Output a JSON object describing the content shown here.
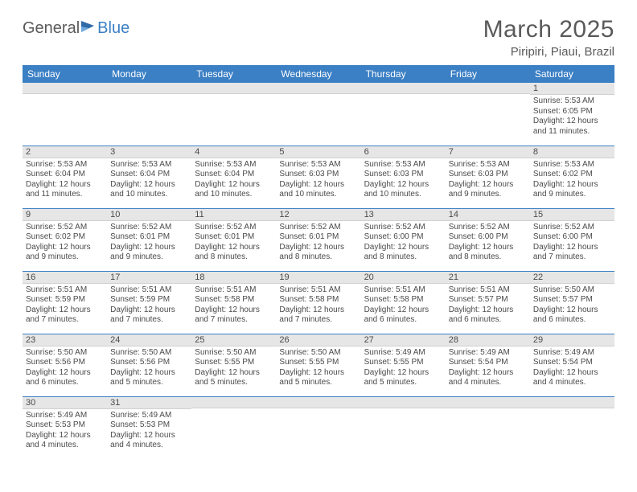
{
  "brand": {
    "part1": "General",
    "part2": "Blue"
  },
  "title": "March 2025",
  "location": "Piripiri, Piaui, Brazil",
  "colors": {
    "header_bg": "#3b7fc4",
    "header_text": "#ffffff",
    "daynum_bg": "#e6e6e6",
    "row_border": "#3b7fc4",
    "text": "#4a4a4a",
    "title_text": "#5a5a5a"
  },
  "day_labels": [
    "Sunday",
    "Monday",
    "Tuesday",
    "Wednesday",
    "Thursday",
    "Friday",
    "Saturday"
  ],
  "weeks": [
    [
      {
        "n": "",
        "sr": "",
        "ss": "",
        "dl": ""
      },
      {
        "n": "",
        "sr": "",
        "ss": "",
        "dl": ""
      },
      {
        "n": "",
        "sr": "",
        "ss": "",
        "dl": ""
      },
      {
        "n": "",
        "sr": "",
        "ss": "",
        "dl": ""
      },
      {
        "n": "",
        "sr": "",
        "ss": "",
        "dl": ""
      },
      {
        "n": "",
        "sr": "",
        "ss": "",
        "dl": ""
      },
      {
        "n": "1",
        "sr": "Sunrise: 5:53 AM",
        "ss": "Sunset: 6:05 PM",
        "dl": "Daylight: 12 hours and 11 minutes."
      }
    ],
    [
      {
        "n": "2",
        "sr": "Sunrise: 5:53 AM",
        "ss": "Sunset: 6:04 PM",
        "dl": "Daylight: 12 hours and 11 minutes."
      },
      {
        "n": "3",
        "sr": "Sunrise: 5:53 AM",
        "ss": "Sunset: 6:04 PM",
        "dl": "Daylight: 12 hours and 10 minutes."
      },
      {
        "n": "4",
        "sr": "Sunrise: 5:53 AM",
        "ss": "Sunset: 6:04 PM",
        "dl": "Daylight: 12 hours and 10 minutes."
      },
      {
        "n": "5",
        "sr": "Sunrise: 5:53 AM",
        "ss": "Sunset: 6:03 PM",
        "dl": "Daylight: 12 hours and 10 minutes."
      },
      {
        "n": "6",
        "sr": "Sunrise: 5:53 AM",
        "ss": "Sunset: 6:03 PM",
        "dl": "Daylight: 12 hours and 10 minutes."
      },
      {
        "n": "7",
        "sr": "Sunrise: 5:53 AM",
        "ss": "Sunset: 6:03 PM",
        "dl": "Daylight: 12 hours and 9 minutes."
      },
      {
        "n": "8",
        "sr": "Sunrise: 5:53 AM",
        "ss": "Sunset: 6:02 PM",
        "dl": "Daylight: 12 hours and 9 minutes."
      }
    ],
    [
      {
        "n": "9",
        "sr": "Sunrise: 5:52 AM",
        "ss": "Sunset: 6:02 PM",
        "dl": "Daylight: 12 hours and 9 minutes."
      },
      {
        "n": "10",
        "sr": "Sunrise: 5:52 AM",
        "ss": "Sunset: 6:01 PM",
        "dl": "Daylight: 12 hours and 9 minutes."
      },
      {
        "n": "11",
        "sr": "Sunrise: 5:52 AM",
        "ss": "Sunset: 6:01 PM",
        "dl": "Daylight: 12 hours and 8 minutes."
      },
      {
        "n": "12",
        "sr": "Sunrise: 5:52 AM",
        "ss": "Sunset: 6:01 PM",
        "dl": "Daylight: 12 hours and 8 minutes."
      },
      {
        "n": "13",
        "sr": "Sunrise: 5:52 AM",
        "ss": "Sunset: 6:00 PM",
        "dl": "Daylight: 12 hours and 8 minutes."
      },
      {
        "n": "14",
        "sr": "Sunrise: 5:52 AM",
        "ss": "Sunset: 6:00 PM",
        "dl": "Daylight: 12 hours and 8 minutes."
      },
      {
        "n": "15",
        "sr": "Sunrise: 5:52 AM",
        "ss": "Sunset: 6:00 PM",
        "dl": "Daylight: 12 hours and 7 minutes."
      }
    ],
    [
      {
        "n": "16",
        "sr": "Sunrise: 5:51 AM",
        "ss": "Sunset: 5:59 PM",
        "dl": "Daylight: 12 hours and 7 minutes."
      },
      {
        "n": "17",
        "sr": "Sunrise: 5:51 AM",
        "ss": "Sunset: 5:59 PM",
        "dl": "Daylight: 12 hours and 7 minutes."
      },
      {
        "n": "18",
        "sr": "Sunrise: 5:51 AM",
        "ss": "Sunset: 5:58 PM",
        "dl": "Daylight: 12 hours and 7 minutes."
      },
      {
        "n": "19",
        "sr": "Sunrise: 5:51 AM",
        "ss": "Sunset: 5:58 PM",
        "dl": "Daylight: 12 hours and 7 minutes."
      },
      {
        "n": "20",
        "sr": "Sunrise: 5:51 AM",
        "ss": "Sunset: 5:58 PM",
        "dl": "Daylight: 12 hours and 6 minutes."
      },
      {
        "n": "21",
        "sr": "Sunrise: 5:51 AM",
        "ss": "Sunset: 5:57 PM",
        "dl": "Daylight: 12 hours and 6 minutes."
      },
      {
        "n": "22",
        "sr": "Sunrise: 5:50 AM",
        "ss": "Sunset: 5:57 PM",
        "dl": "Daylight: 12 hours and 6 minutes."
      }
    ],
    [
      {
        "n": "23",
        "sr": "Sunrise: 5:50 AM",
        "ss": "Sunset: 5:56 PM",
        "dl": "Daylight: 12 hours and 6 minutes."
      },
      {
        "n": "24",
        "sr": "Sunrise: 5:50 AM",
        "ss": "Sunset: 5:56 PM",
        "dl": "Daylight: 12 hours and 5 minutes."
      },
      {
        "n": "25",
        "sr": "Sunrise: 5:50 AM",
        "ss": "Sunset: 5:55 PM",
        "dl": "Daylight: 12 hours and 5 minutes."
      },
      {
        "n": "26",
        "sr": "Sunrise: 5:50 AM",
        "ss": "Sunset: 5:55 PM",
        "dl": "Daylight: 12 hours and 5 minutes."
      },
      {
        "n": "27",
        "sr": "Sunrise: 5:49 AM",
        "ss": "Sunset: 5:55 PM",
        "dl": "Daylight: 12 hours and 5 minutes."
      },
      {
        "n": "28",
        "sr": "Sunrise: 5:49 AM",
        "ss": "Sunset: 5:54 PM",
        "dl": "Daylight: 12 hours and 4 minutes."
      },
      {
        "n": "29",
        "sr": "Sunrise: 5:49 AM",
        "ss": "Sunset: 5:54 PM",
        "dl": "Daylight: 12 hours and 4 minutes."
      }
    ],
    [
      {
        "n": "30",
        "sr": "Sunrise: 5:49 AM",
        "ss": "Sunset: 5:53 PM",
        "dl": "Daylight: 12 hours and 4 minutes."
      },
      {
        "n": "31",
        "sr": "Sunrise: 5:49 AM",
        "ss": "Sunset: 5:53 PM",
        "dl": "Daylight: 12 hours and 4 minutes."
      },
      {
        "n": "",
        "sr": "",
        "ss": "",
        "dl": ""
      },
      {
        "n": "",
        "sr": "",
        "ss": "",
        "dl": ""
      },
      {
        "n": "",
        "sr": "",
        "ss": "",
        "dl": ""
      },
      {
        "n": "",
        "sr": "",
        "ss": "",
        "dl": ""
      },
      {
        "n": "",
        "sr": "",
        "ss": "",
        "dl": ""
      }
    ]
  ]
}
